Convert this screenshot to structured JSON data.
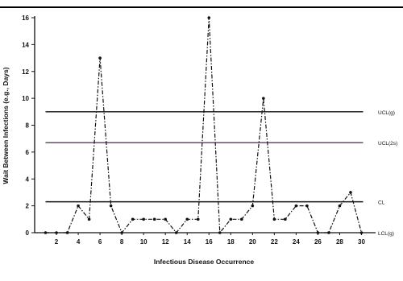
{
  "chart_data": {
    "type": "line",
    "title": "",
    "xlabel": "Infectious Disease Occurrence",
    "ylabel": "Wait Between Infections (e.g., Days)",
    "xlim": [
      0,
      31
    ],
    "ylim": [
      0,
      16
    ],
    "x_ticks": [
      2,
      4,
      6,
      8,
      10,
      12,
      14,
      16,
      18,
      20,
      22,
      24,
      26,
      28,
      30
    ],
    "y_ticks": [
      0,
      2,
      4,
      6,
      8,
      10,
      12,
      14,
      16
    ],
    "grid": false,
    "legend": "none",
    "series": [
      {
        "line_style": "dash-dot",
        "color": "#111111",
        "x": [
          1,
          2,
          3,
          4,
          5,
          6,
          7,
          8,
          9,
          10,
          11,
          12,
          13,
          14,
          15,
          16,
          17,
          18,
          19,
          20,
          21,
          22,
          23,
          24,
          25,
          26,
          27,
          28,
          29,
          30
        ],
        "y": [
          0,
          0,
          0,
          2,
          1,
          13,
          2,
          0,
          1,
          1,
          1,
          1,
          0,
          1,
          1,
          16,
          0,
          1,
          1,
          2,
          10,
          1,
          1,
          2,
          2,
          0,
          0,
          2,
          3,
          0
        ]
      }
    ],
    "reference_lines": [
      {
        "label": "UCL(g)",
        "y": 9.0,
        "color": "#111111"
      },
      {
        "label": "UCL(2s)",
        "y": 6.7,
        "color": "#5a3a5a"
      },
      {
        "label": "CL",
        "y": 2.3,
        "color": "#111111"
      },
      {
        "label": "LCL(g)",
        "y": 0,
        "color": "#111111"
      }
    ]
  }
}
